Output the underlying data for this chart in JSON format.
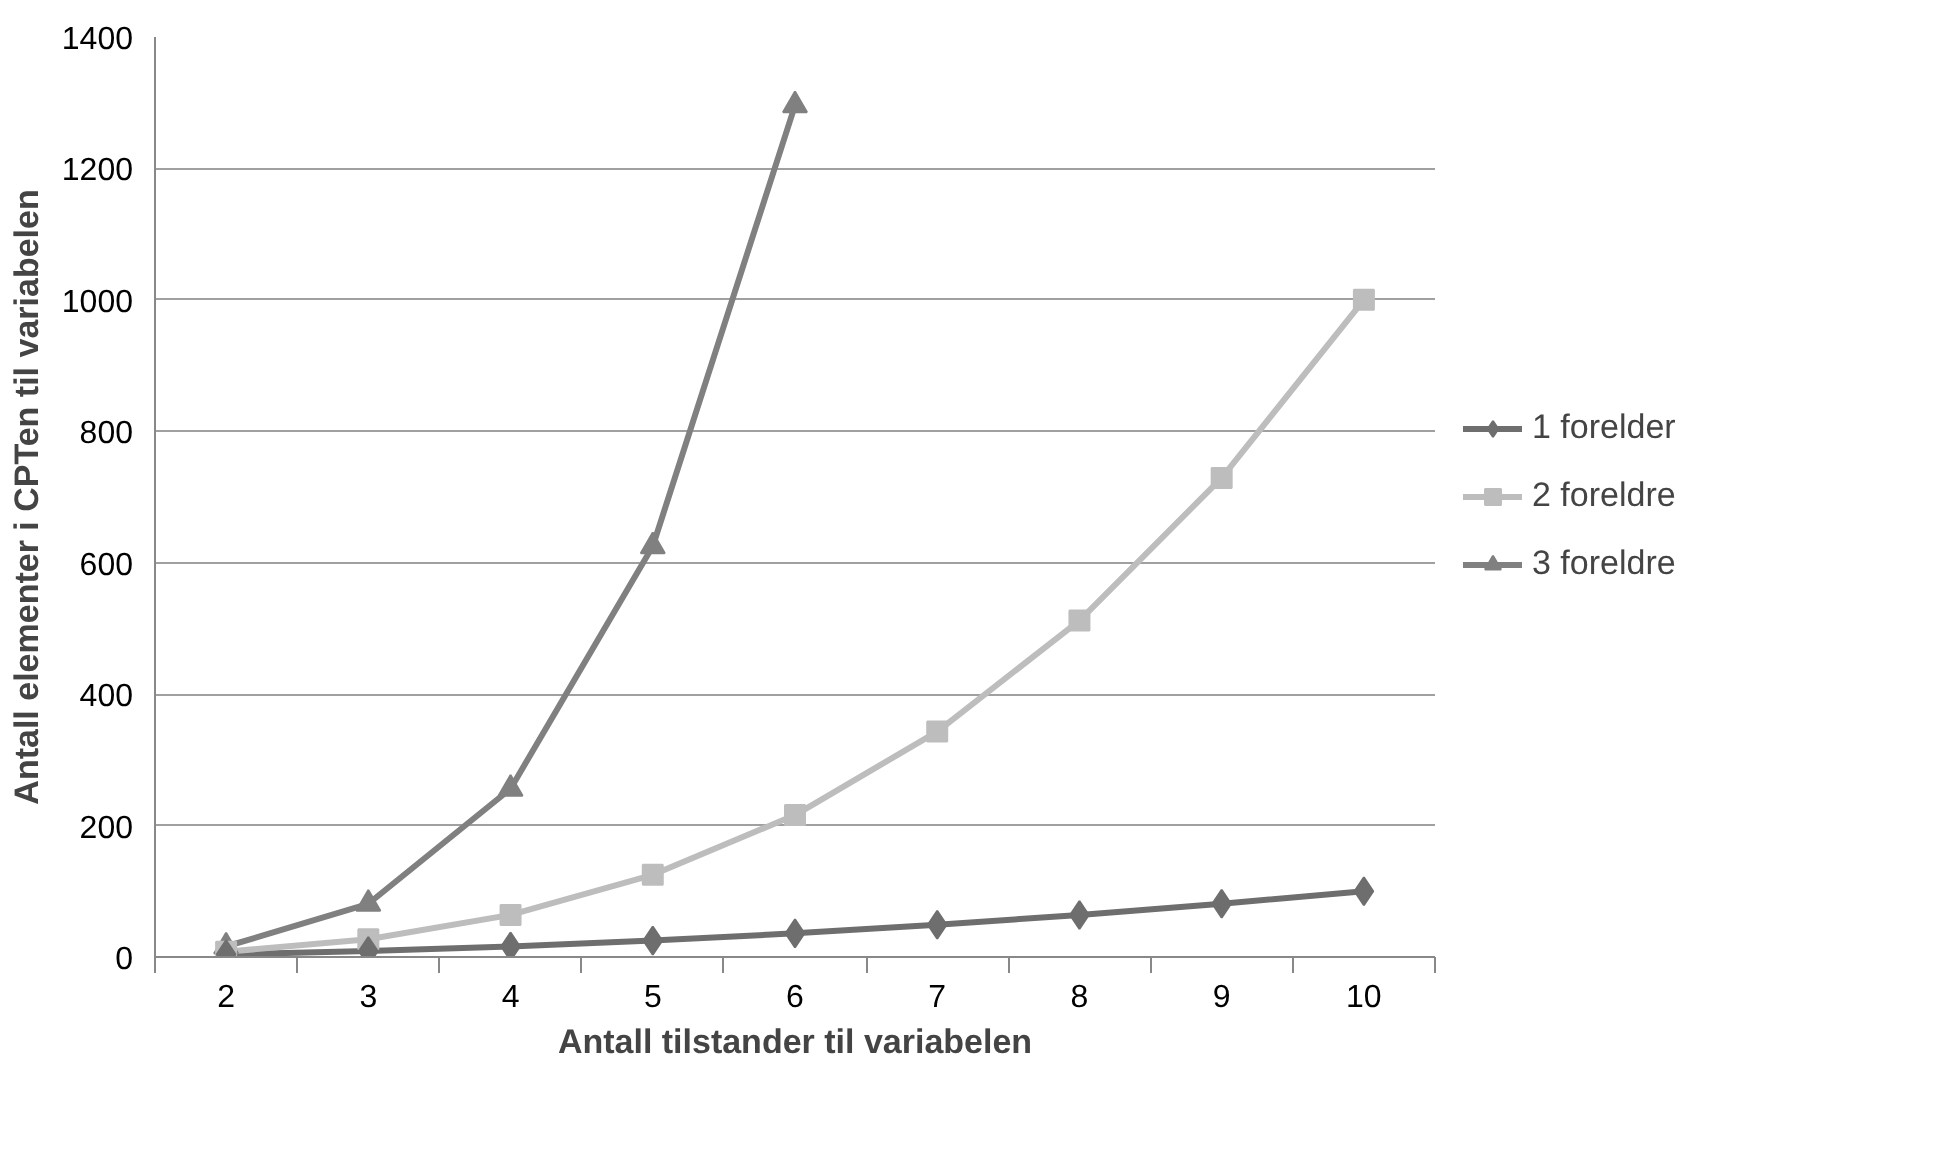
{
  "chart_data": {
    "type": "line",
    "xlabel": "Antall tilstander til variabelen",
    "ylabel": "Antall elementer i CPTen til variabelen",
    "categories": [
      "2",
      "3",
      "4",
      "5",
      "6",
      "7",
      "8",
      "9",
      "10"
    ],
    "series": [
      {
        "name": "1 forelder",
        "color": "#6e6e6e",
        "marker": "diamond",
        "values": [
          4,
          9,
          16,
          25,
          36,
          49,
          64,
          81,
          100
        ]
      },
      {
        "name": "2 foreldre",
        "color": "#bdbdbd",
        "marker": "square",
        "values": [
          8,
          27,
          64,
          125,
          216,
          343,
          512,
          729,
          1000
        ]
      },
      {
        "name": "3 foreldre",
        "color": "#808080",
        "marker": "triangle",
        "values": [
          16,
          81,
          256,
          625,
          1296,
          null,
          null,
          null,
          null
        ]
      }
    ],
    "ylim": [
      0,
      1400
    ],
    "yticks": [
      0,
      200,
      400,
      600,
      800,
      1000,
      1200,
      1400
    ],
    "grid": "y",
    "legend": "right"
  }
}
